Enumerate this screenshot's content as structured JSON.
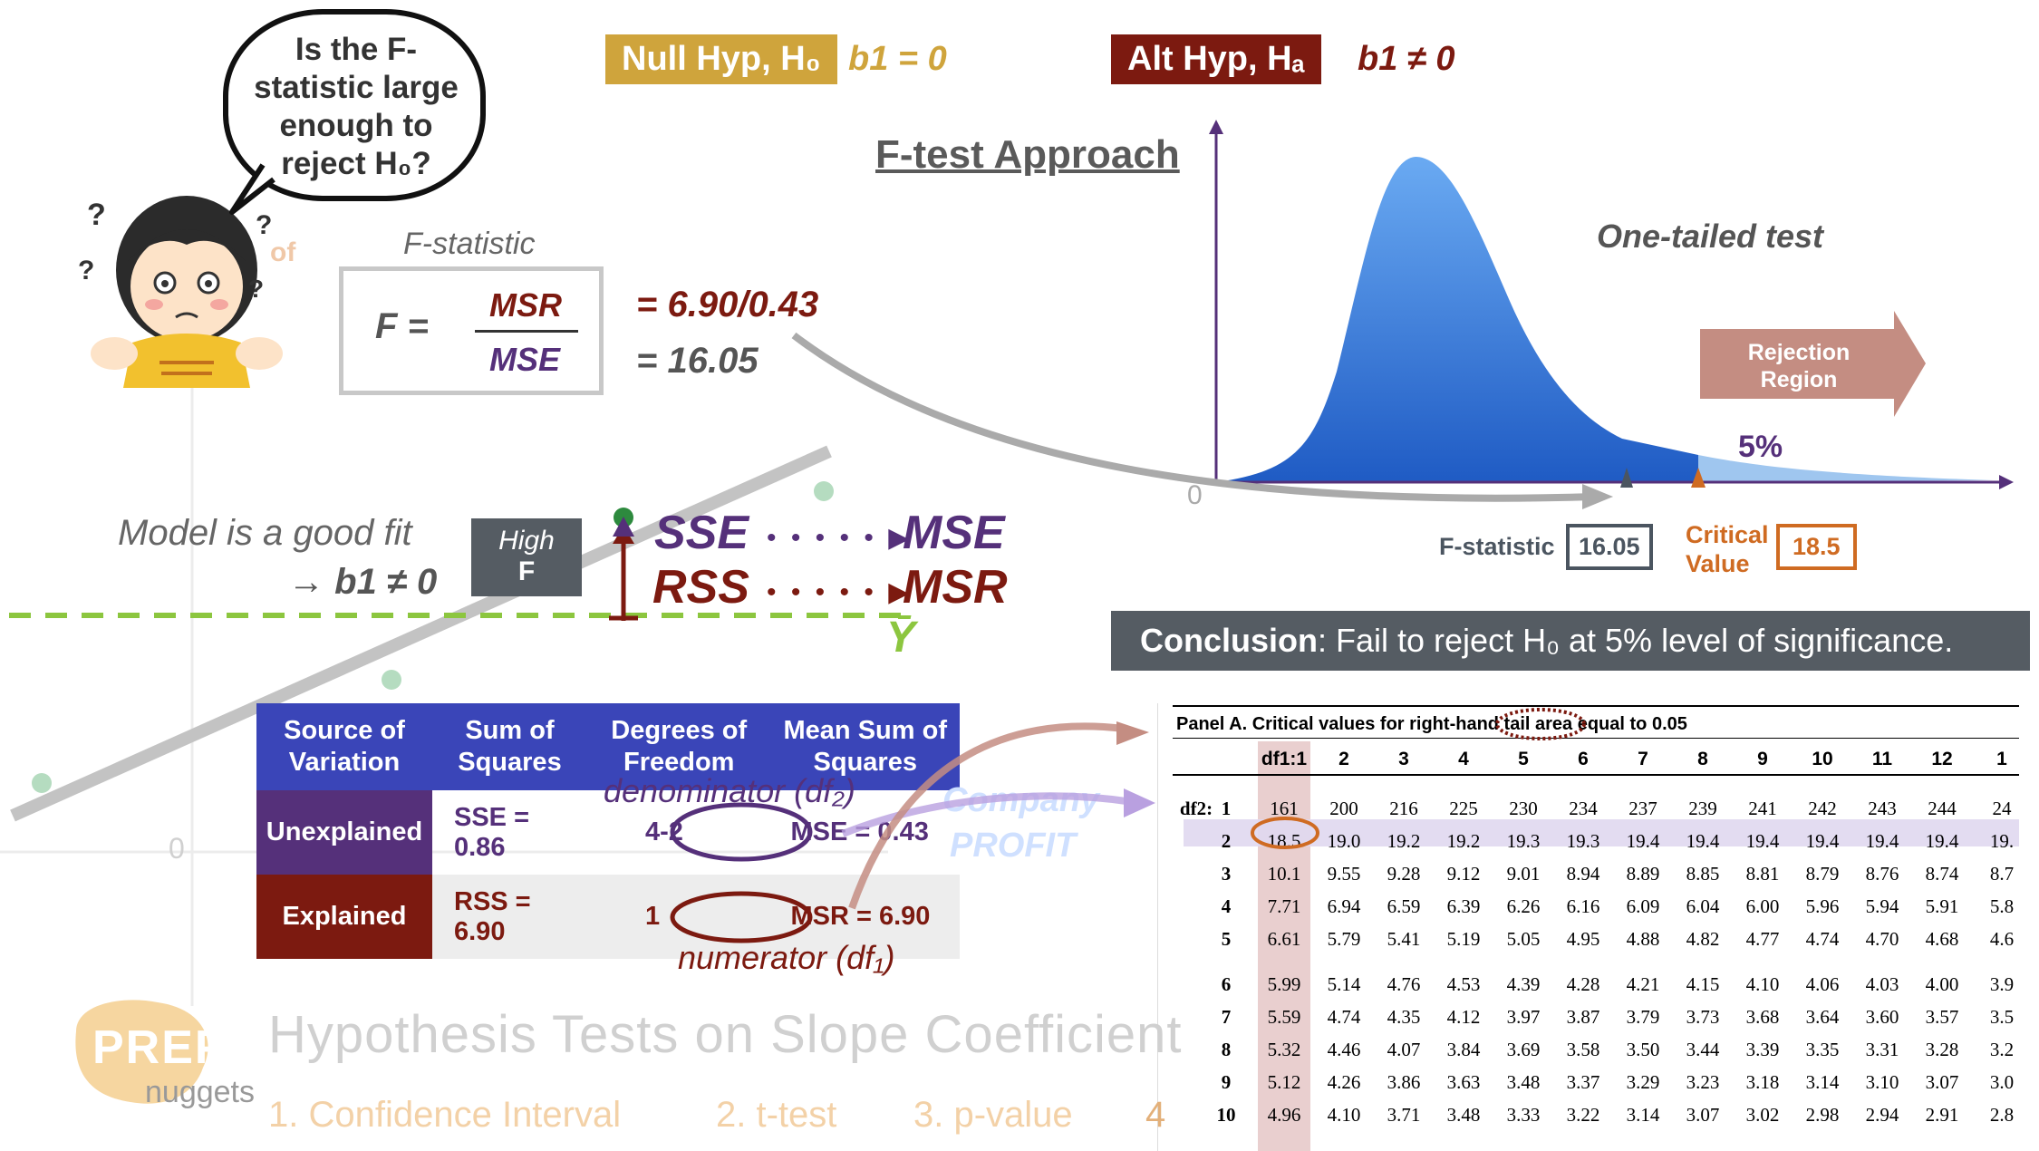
{
  "null_hyp": {
    "label": "Null Hyp, H₀",
    "value": "b1 = 0",
    "color": "#cfa43c"
  },
  "alt_hyp": {
    "label": "Alt Hyp, Hₐ",
    "value": "b1 ≠ 0",
    "color": "#7c1a10"
  },
  "bubble_text": "Is the F-statistic large enough to reject H₀?",
  "bg_partial": "of",
  "approach_title": "F-test Approach",
  "formula": {
    "caption": "F-statistic",
    "lhs": "F =",
    "numerator": "MSR",
    "denominator": "MSE",
    "calc_1": "= 6.90/0.43",
    "calc_2": "= 16.05"
  },
  "model_fit": {
    "line1": "Model is a good fit",
    "line2": "→ b1 ≠ 0"
  },
  "high_f": {
    "line1": "High",
    "line2": "F"
  },
  "flows": [
    {
      "from": "SSE",
      "to": "MSE"
    },
    {
      "from": "RSS",
      "to": "MSR"
    }
  ],
  "ybar": "Ȳ",
  "axis_zero": "0",
  "anova_table": {
    "headers": [
      "Source of Variation",
      "Sum of Squares",
      "Degrees of Freedom",
      "Mean Sum of Squares"
    ],
    "rows": [
      {
        "source": "Unexplained",
        "ss": "SSE = 0.86",
        "df": "4-2",
        "ms": "MSE = 0.43",
        "color": "#55307a"
      },
      {
        "source": "Explained",
        "ss": "RSS = 6.90",
        "df": "1",
        "ms": "MSR = 6.90",
        "color": "#7c1a10"
      }
    ],
    "df_denominator_label": "denominator (df₂)",
    "df_numerator_label": "numerator (df₁)",
    "watermark_1": "Company",
    "watermark_2": "PROFIT"
  },
  "distribution": {
    "test_label": "One-tailed test",
    "rejection_label": "Rejection Region",
    "tail_pct": "5%",
    "fstat_label": "F-statistic",
    "fstat_value": "16.05",
    "critical_label": "Critical Value",
    "critical_value": "18.5"
  },
  "conclusion": {
    "bold": "Conclusion",
    "text": ": Fail to reject H₀ at 5% level of significance."
  },
  "critical_table": {
    "title": "Panel A. Critical values for right-hand tail area equal to",
    "alpha": "0.05",
    "df1_label": "df1:1",
    "df2_label": "df2:",
    "col_headers": [
      "2",
      "3",
      "4",
      "5",
      "6",
      "7",
      "8",
      "9",
      "10",
      "11",
      "12",
      "1"
    ],
    "rows": [
      {
        "df2": "1",
        "v": [
          "161",
          "200",
          "216",
          "225",
          "230",
          "234",
          "237",
          "239",
          "241",
          "242",
          "243",
          "244",
          "24"
        ]
      },
      {
        "df2": "2",
        "v": [
          "18.5",
          "19.0",
          "19.2",
          "19.2",
          "19.3",
          "19.3",
          "19.4",
          "19.4",
          "19.4",
          "19.4",
          "19.4",
          "19.4",
          "19."
        ]
      },
      {
        "df2": "3",
        "v": [
          "10.1",
          "9.55",
          "9.28",
          "9.12",
          "9.01",
          "8.94",
          "8.89",
          "8.85",
          "8.81",
          "8.79",
          "8.76",
          "8.74",
          "8.7"
        ]
      },
      {
        "df2": "4",
        "v": [
          "7.71",
          "6.94",
          "6.59",
          "6.39",
          "6.26",
          "6.16",
          "6.09",
          "6.04",
          "6.00",
          "5.96",
          "5.94",
          "5.91",
          "5.8"
        ]
      },
      {
        "df2": "5",
        "v": [
          "6.61",
          "5.79",
          "5.41",
          "5.19",
          "5.05",
          "4.95",
          "4.88",
          "4.82",
          "4.77",
          "4.74",
          "4.70",
          "4.68",
          "4.6"
        ]
      },
      {
        "df2": "6",
        "v": [
          "5.99",
          "5.14",
          "4.76",
          "4.53",
          "4.39",
          "4.28",
          "4.21",
          "4.15",
          "4.10",
          "4.06",
          "4.03",
          "4.00",
          "3.9"
        ]
      },
      {
        "df2": "7",
        "v": [
          "5.59",
          "4.74",
          "4.35",
          "4.12",
          "3.97",
          "3.87",
          "3.79",
          "3.73",
          "3.68",
          "3.64",
          "3.60",
          "3.57",
          "3.5"
        ]
      },
      {
        "df2": "8",
        "v": [
          "5.32",
          "4.46",
          "4.07",
          "3.84",
          "3.69",
          "3.58",
          "3.50",
          "3.44",
          "3.39",
          "3.35",
          "3.31",
          "3.28",
          "3.2"
        ]
      },
      {
        "df2": "9",
        "v": [
          "5.12",
          "4.26",
          "3.86",
          "3.63",
          "3.48",
          "3.37",
          "3.29",
          "3.23",
          "3.18",
          "3.14",
          "3.10",
          "3.07",
          "3.0"
        ]
      },
      {
        "df2": "10",
        "v": [
          "4.96",
          "4.10",
          "3.71",
          "3.48",
          "3.33",
          "3.22",
          "3.14",
          "3.07",
          "3.02",
          "2.98",
          "2.94",
          "2.91",
          "2.8"
        ]
      }
    ]
  },
  "logo": {
    "line1": "PREP",
    "line2": "nuggets"
  },
  "subject_title": "Hypothesis Tests on Slope Coefficient",
  "methods": [
    "1. Confidence Interval",
    "2. t-test",
    "3. p-value"
  ],
  "method_partial": "4"
}
